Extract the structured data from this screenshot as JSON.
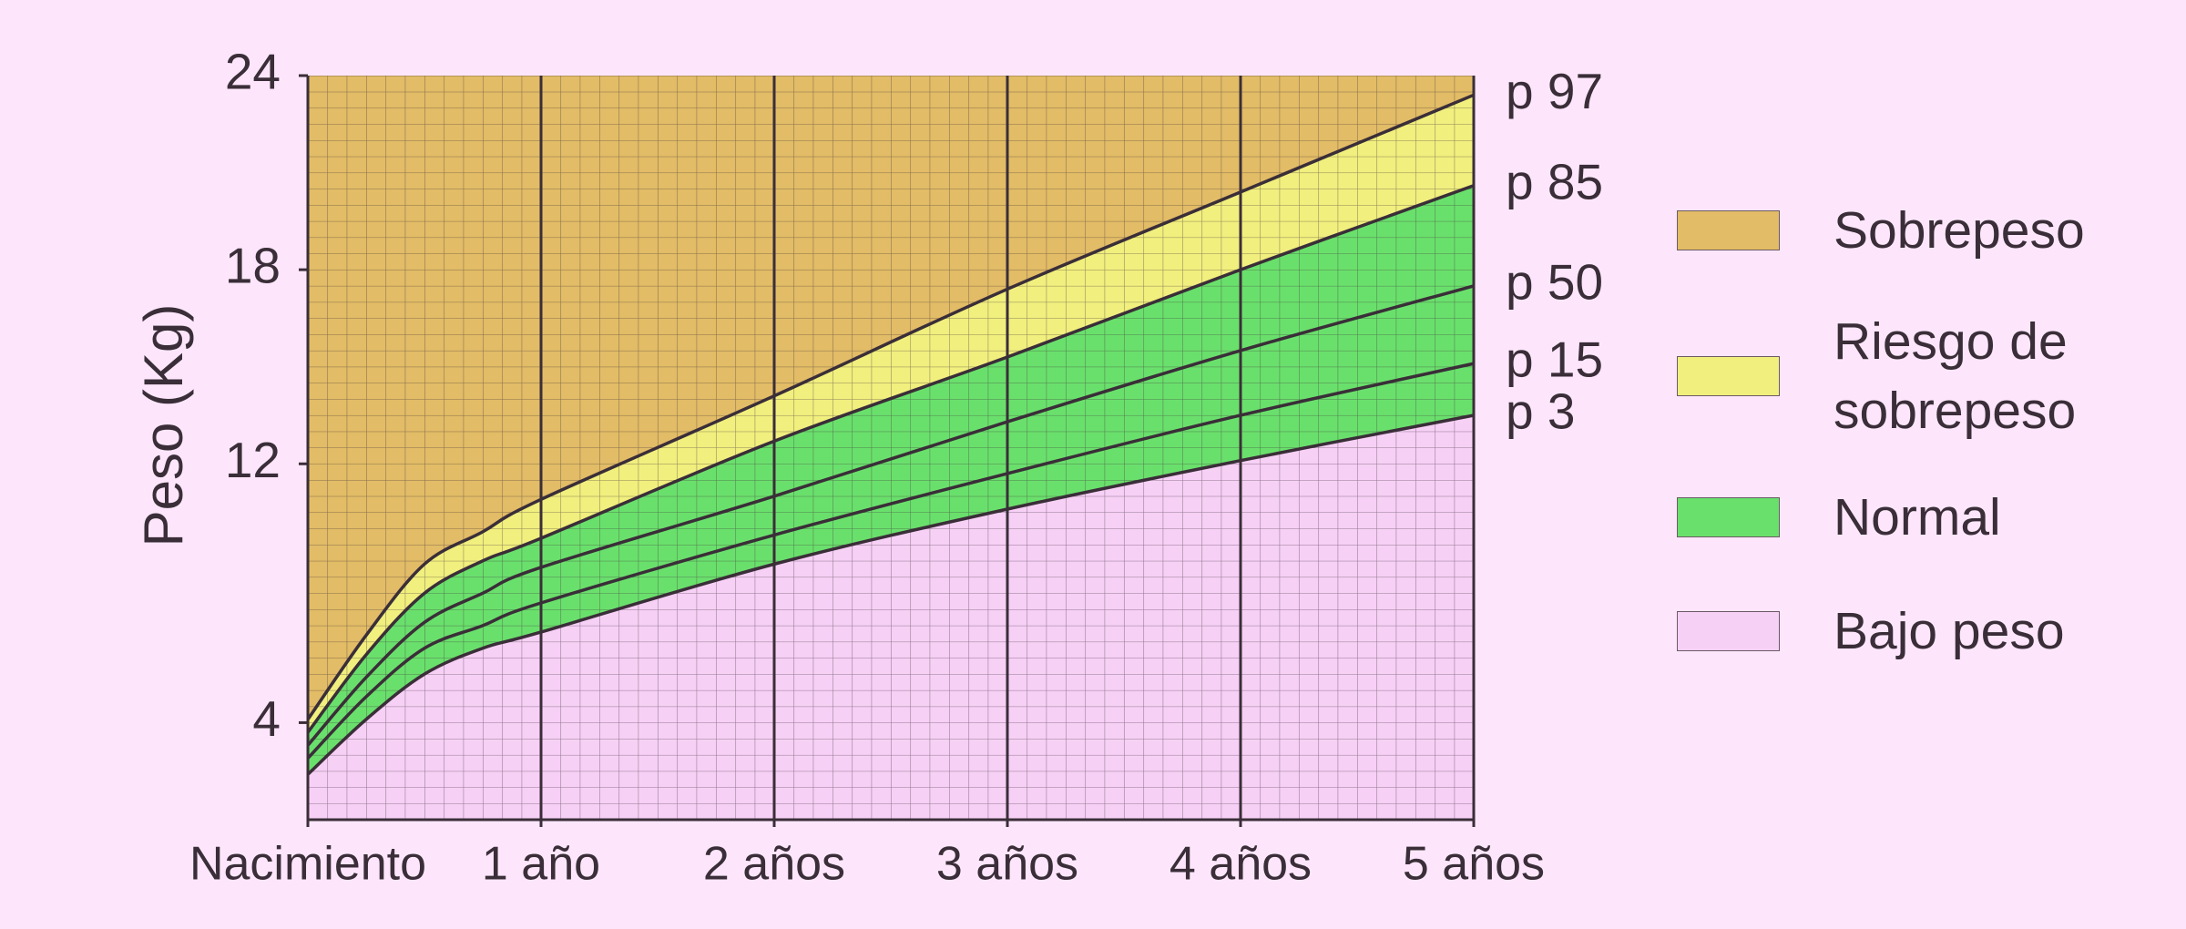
{
  "chart_data": {
    "type": "line",
    "y_label": "Peso (Kg)",
    "xlim": [
      0,
      5
    ],
    "ylim": [
      1,
      24
    ],
    "xticks": [
      {
        "value": 0,
        "label": "Nacimiento"
      },
      {
        "value": 1,
        "label": "1 año"
      },
      {
        "value": 2,
        "label": "2 años"
      },
      {
        "value": 3,
        "label": "3 años"
      },
      {
        "value": 4,
        "label": "4 años"
      },
      {
        "value": 5,
        "label": "5 años"
      }
    ],
    "yticks": [
      4,
      12,
      18,
      24
    ],
    "x": [
      0,
      0.25,
      0.5,
      0.75,
      1,
      2,
      3,
      4,
      5
    ],
    "series": [
      {
        "name": "p 97",
        "color": "#3a2e38",
        "values": [
          4.1,
          6.7,
          8.9,
          9.9,
          10.9,
          14.1,
          17.4,
          20.4,
          23.4
        ]
      },
      {
        "name": "p 85",
        "color": "#3a2e38",
        "values": [
          3.7,
          6.1,
          8.0,
          9.0,
          9.7,
          12.7,
          15.3,
          18.0,
          20.6
        ]
      },
      {
        "name": "p 50",
        "color": "#3a2e38",
        "values": [
          3.3,
          5.4,
          7.1,
          8.0,
          8.8,
          11.0,
          13.3,
          15.5,
          17.5
        ]
      },
      {
        "name": "p 15",
        "color": "#3a2e38",
        "values": [
          2.9,
          4.8,
          6.3,
          7.0,
          7.7,
          9.8,
          11.7,
          13.5,
          15.1
        ]
      },
      {
        "name": "p 3",
        "color": "#3a2e38",
        "values": [
          2.4,
          4.1,
          5.5,
          6.3,
          6.8,
          8.9,
          10.6,
          12.1,
          13.5
        ]
      }
    ],
    "bands": [
      {
        "name": "Sobrepeso",
        "color": "#e2bc66"
      },
      {
        "name": "Riesgo de sobrepeso",
        "color": "#f1ef7e"
      },
      {
        "name": "Normal",
        "color": "#6ae06c"
      },
      {
        "name": "Bajo peso",
        "color": "#f7d0f6"
      }
    ]
  }
}
